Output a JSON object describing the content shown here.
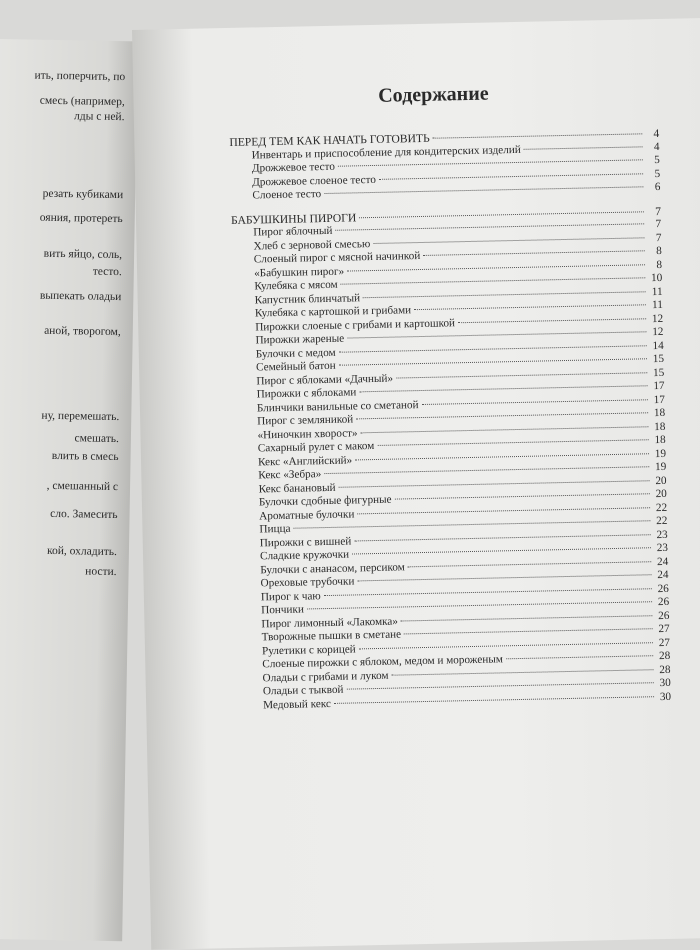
{
  "left_page": {
    "lines": [
      "ить, поперчить, по",
      "смесь (например,",
      "лды с ней.",
      "резать кубиками",
      "ояния, протереть",
      "вить яйцо, соль,",
      "тесто.",
      "выпекать оладьи",
      "аной, творогом,",
      "ну, перемешать.",
      "смешать.",
      "влить в смесь",
      ", смешанный с",
      "сло. Замесить",
      "кой, охладить.",
      "ности."
    ]
  },
  "contents": {
    "title": "Содержание",
    "sections": [
      {
        "title": "ПЕРЕД ТЕМ КАК НАЧАТЬ ГОТОВИТЬ",
        "page": "4",
        "items": [
          {
            "title": "Инвентарь и приспособление для кондитерских изделий",
            "page": "4"
          },
          {
            "title": "Дрожжевое тесто",
            "page": "5"
          },
          {
            "title": "Дрожжевое слоеное тесто",
            "page": "5"
          },
          {
            "title": "Слоеное тесто",
            "page": "6"
          }
        ]
      },
      {
        "title": "БАБУШКИНЫ ПИРОГИ",
        "page": "7",
        "items": [
          {
            "title": "Пирог яблочный",
            "page": "7"
          },
          {
            "title": "Хлеб с зерновой смесью",
            "page": "7"
          },
          {
            "title": "Слоеный пирог с мясной начинкой",
            "page": "8"
          },
          {
            "title": "«Бабушкин пирог»",
            "page": "8"
          },
          {
            "title": "Кулебяка с мясом",
            "page": "10"
          },
          {
            "title": "Капустник блинчатый",
            "page": "11"
          },
          {
            "title": "Кулебяка с картошкой и грибами",
            "page": "11"
          },
          {
            "title": "Пирожки слоеные с грибами и картошкой",
            "page": "12"
          },
          {
            "title": "Пирожки жареные",
            "page": "12"
          },
          {
            "title": "Булочки с медом",
            "page": "14"
          },
          {
            "title": "Семейный батон",
            "page": "15"
          },
          {
            "title": "Пирог с яблоками «Дачный»",
            "page": "15"
          },
          {
            "title": "Пирожки с яблоками",
            "page": "17"
          },
          {
            "title": "Блинчики ванильные со сметаной",
            "page": "17"
          },
          {
            "title": "Пирог с земляникой",
            "page": "18"
          },
          {
            "title": "«Ниночкин хворост»",
            "page": "18"
          },
          {
            "title": "Сахарный рулет с маком",
            "page": "18"
          },
          {
            "title": "Кекс «Английский»",
            "page": "19"
          },
          {
            "title": "Кекс «Зебра»",
            "page": "19"
          },
          {
            "title": "Кекс банановый",
            "page": "20"
          },
          {
            "title": "Булочки сдобные фигурные",
            "page": "20"
          },
          {
            "title": "Ароматные булочки",
            "page": "22"
          },
          {
            "title": "Пицца",
            "page": "22"
          },
          {
            "title": "Пирожки с вишней",
            "page": "23"
          },
          {
            "title": "Сладкие кружочки",
            "page": "23"
          },
          {
            "title": "Булочки с ананасом, персиком",
            "page": "24"
          },
          {
            "title": "Ореховые трубочки",
            "page": "24"
          },
          {
            "title": "Пирог к чаю",
            "page": "26"
          },
          {
            "title": "Пончики",
            "page": "26"
          },
          {
            "title": "Пирог лимонный «Лакомка»",
            "page": "26"
          },
          {
            "title": "Творожные пышки в сметане",
            "page": "27"
          },
          {
            "title": "Рулетики с корицей",
            "page": "27"
          },
          {
            "title": "Слоеные пирожки с яблоком, медом и мороженым",
            "page": "28"
          },
          {
            "title": "Оладьи с грибами и луком",
            "page": "28"
          },
          {
            "title": "Оладьи с тыквой",
            "page": "30"
          },
          {
            "title": "Медовый кекс",
            "page": "30"
          }
        ]
      }
    ]
  }
}
